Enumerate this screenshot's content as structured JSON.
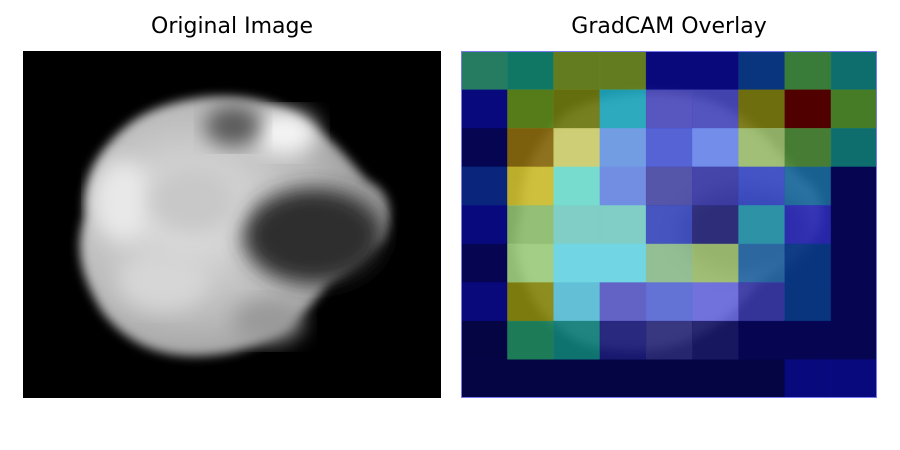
{
  "panels": {
    "original": {
      "title": "Original Image"
    },
    "overlay": {
      "title": "GradCAM Overlay"
    }
  },
  "overlay": {
    "cols": 9,
    "rows": 9,
    "overlay_opacity": 0.55,
    "grid_colors": [
      [
        "#2a8a6a",
        "#138470",
        "#6d8a22",
        "#6d8a22",
        "#0a0a8a",
        "#0a0a8a",
        "#0a3a8c",
        "#3f8a3f",
        "#0f7a7a"
      ],
      [
        "#0a0a8c",
        "#5f8a1c",
        "#6f7a10",
        "#1fa8c0",
        "#4d4dc0",
        "#4a4ac0",
        "#7a7a10",
        "#5a0000",
        "#4f8a2a"
      ],
      [
        "#05055a",
        "#8a6a10",
        "#d0d070",
        "#6a9ae8",
        "#4a5ad8",
        "#6a8af0",
        "#a0c070",
        "#4f8a3a",
        "#0f7a7a"
      ],
      [
        "#0a2a8a",
        "#d0c030",
        "#70e0d0",
        "#6a8ae8",
        "#4a4aa8",
        "#3a3aa8",
        "#3a4ac8",
        "#1a6aa0",
        "#05055a"
      ],
      [
        "#0a0a8c",
        "#90c070",
        "#7ad0c8",
        "#7ad0c8",
        "#3a4ac0",
        "#2a2a80",
        "#2a9ab0",
        "#2a2ab8",
        "#05055a"
      ],
      [
        "#05055a",
        "#a0d080",
        "#6ad8e8",
        "#6ad8e8",
        "#90c090",
        "#a0c070",
        "#2a6aa8",
        "#0a3a8c",
        "#05055a"
      ],
      [
        "#0a0a8a",
        "#8a8a10",
        "#5ac0d8",
        "#5a5ac8",
        "#5a6ad8",
        "#6a6ae0",
        "#3a3aa8",
        "#0a3a8c",
        "#05055a"
      ],
      [
        "#05054a",
        "#208a60",
        "#10807a",
        "#1a1a7a",
        "#2a2a7a",
        "#1a1a6a",
        "#05055a",
        "#05055a",
        "#05055a"
      ],
      [
        "#05054a",
        "#05054a",
        "#05054a",
        "#05054a",
        "#05054a",
        "#05054a",
        "#05054a",
        "#0a0a8c",
        "#0a0a8c"
      ]
    ]
  }
}
